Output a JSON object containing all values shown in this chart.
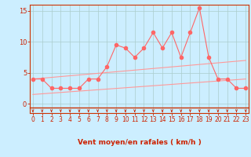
{
  "title": "",
  "xlabel": "Vent moyen/en rafales ( km/h )",
  "bg_color": "#cceeff",
  "grid_color": "#aacccc",
  "line_color": "#ff6666",
  "trend_color": "#ff9999",
  "x_data": [
    0,
    1,
    2,
    3,
    4,
    5,
    6,
    7,
    8,
    9,
    10,
    11,
    12,
    13,
    14,
    15,
    16,
    17,
    18,
    19,
    20,
    21,
    22,
    23
  ],
  "y_upper": [
    4.0,
    4.0,
    2.5,
    2.5,
    2.5,
    2.5,
    4.0,
    4.0,
    6.0,
    9.5,
    9.0,
    7.5,
    9.0,
    11.5,
    9.0,
    11.5,
    7.5,
    11.5,
    15.5,
    7.5,
    4.0,
    4.0,
    2.5,
    2.5
  ],
  "trend1_x": [
    0,
    23
  ],
  "trend1_y": [
    4.0,
    7.0
  ],
  "trend2_x": [
    0,
    23
  ],
  "trend2_y": [
    1.5,
    4.0
  ],
  "xlim": [
    -0.3,
    23.3
  ],
  "ylim": [
    -1.5,
    16
  ],
  "yticks": [
    0,
    5,
    10,
    15
  ],
  "xticks": [
    0,
    1,
    2,
    3,
    4,
    5,
    6,
    7,
    8,
    9,
    10,
    11,
    12,
    13,
    14,
    15,
    16,
    17,
    18,
    19,
    20,
    21,
    22,
    23
  ],
  "tick_color": "#cc2200",
  "label_color": "#cc2200",
  "spine_color": "#cc3300",
  "marker_size": 3,
  "lw": 0.8
}
